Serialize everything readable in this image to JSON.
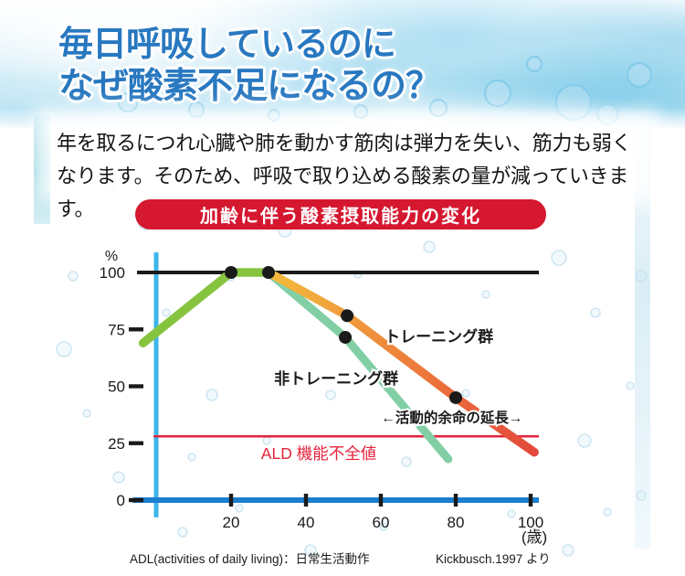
{
  "header": {
    "title_line1": "毎日呼吸しているのに",
    "title_line2": "なぜ酸素不足になるの？"
  },
  "intro": {
    "line1": "年を取るにつれ心臓や肺を動かす筋肉は弾力を失い、筋力も弱く",
    "line2": "なります。そのため、呼吸で取り込める酸素の量が減っていきます。"
  },
  "banner": {
    "label": "加齢に伴う酸素摂取能力の変化",
    "color": "#d5172f"
  },
  "footer": {
    "footnote_left": "ADL(activities of daily living)：日常生活動作",
    "footnote_right": "Kickbusch.1997 より"
  },
  "colors": {
    "title_blue": "#2878c0",
    "banner_red": "#d5172f",
    "y_axis_blue": "#3db5e8",
    "x_axis_blue": "#1b7fd0",
    "line_black": "#1a1a1a",
    "ald_red": "#e5223c",
    "green": "#86c440",
    "mint": "#82cfa6",
    "orange_gradient": [
      "#f3bc3b",
      "#f0973c",
      "#ea683b",
      "#e3493c"
    ]
  },
  "chart_data": {
    "type": "line",
    "title": "加齢に伴う酸素摂取能力の変化",
    "xlabel": "(歳)",
    "ylabel": "%",
    "xlim": [
      0,
      105
    ],
    "ylim": [
      0,
      105
    ],
    "grid": false,
    "axes": {
      "x": {
        "ticks": [
          20,
          40,
          60,
          80,
          100
        ],
        "unit_label": "(歳)",
        "line_range": [
          -6.3,
          102.2
        ]
      },
      "y": {
        "ticks": [
          0,
          25,
          50,
          75,
          100
        ],
        "unit_label": "%",
        "line_range_pct": [
          -7.6,
          108.8
        ]
      }
    },
    "series": [
      {
        "id": "common-rise",
        "label": null,
        "color": "#86c440",
        "points": [
          [
            -3.5,
            69
          ],
          [
            20,
            100
          ],
          [
            30,
            100
          ]
        ]
      },
      {
        "id": "training",
        "label": "トレーニング群",
        "gradient": [
          "#f3bc3b",
          "#f0973c",
          "#ea683b",
          "#e3493c"
        ],
        "points": [
          [
            30,
            100
          ],
          [
            51,
            81
          ],
          [
            80,
            45
          ],
          [
            101,
            21
          ]
        ],
        "label_pos": [
          61,
          69.5
        ],
        "label_anchor": "start"
      },
      {
        "id": "non-training",
        "label": "非トレーニング群",
        "color": "#82cfa6",
        "points": [
          [
            30,
            100
          ],
          [
            50.5,
            71.5
          ],
          [
            78,
            18
          ]
        ],
        "label_pos": [
          31.5,
          51
        ],
        "label_anchor": "start"
      }
    ],
    "dots": [
      [
        20,
        100
      ],
      [
        30,
        100
      ],
      [
        51,
        81
      ],
      [
        80,
        45
      ],
      [
        50.5,
        71.5
      ]
    ],
    "reference_lines": [
      {
        "id": "max-100",
        "y": 100,
        "color": "#1a1a1a",
        "x_range": [
          -5.1,
          102.2
        ],
        "label": null
      },
      {
        "id": "ald",
        "y": 28,
        "color": "#e5223c",
        "x_range": [
          -0.7,
          102.2
        ],
        "label": "ALD 機能不全値",
        "label_pos": [
          28,
          18
        ]
      }
    ],
    "annotations": [
      {
        "text": "←活動的余命の延長→",
        "pos": [
          79,
          34.2
        ],
        "anchor": "middle"
      }
    ]
  }
}
